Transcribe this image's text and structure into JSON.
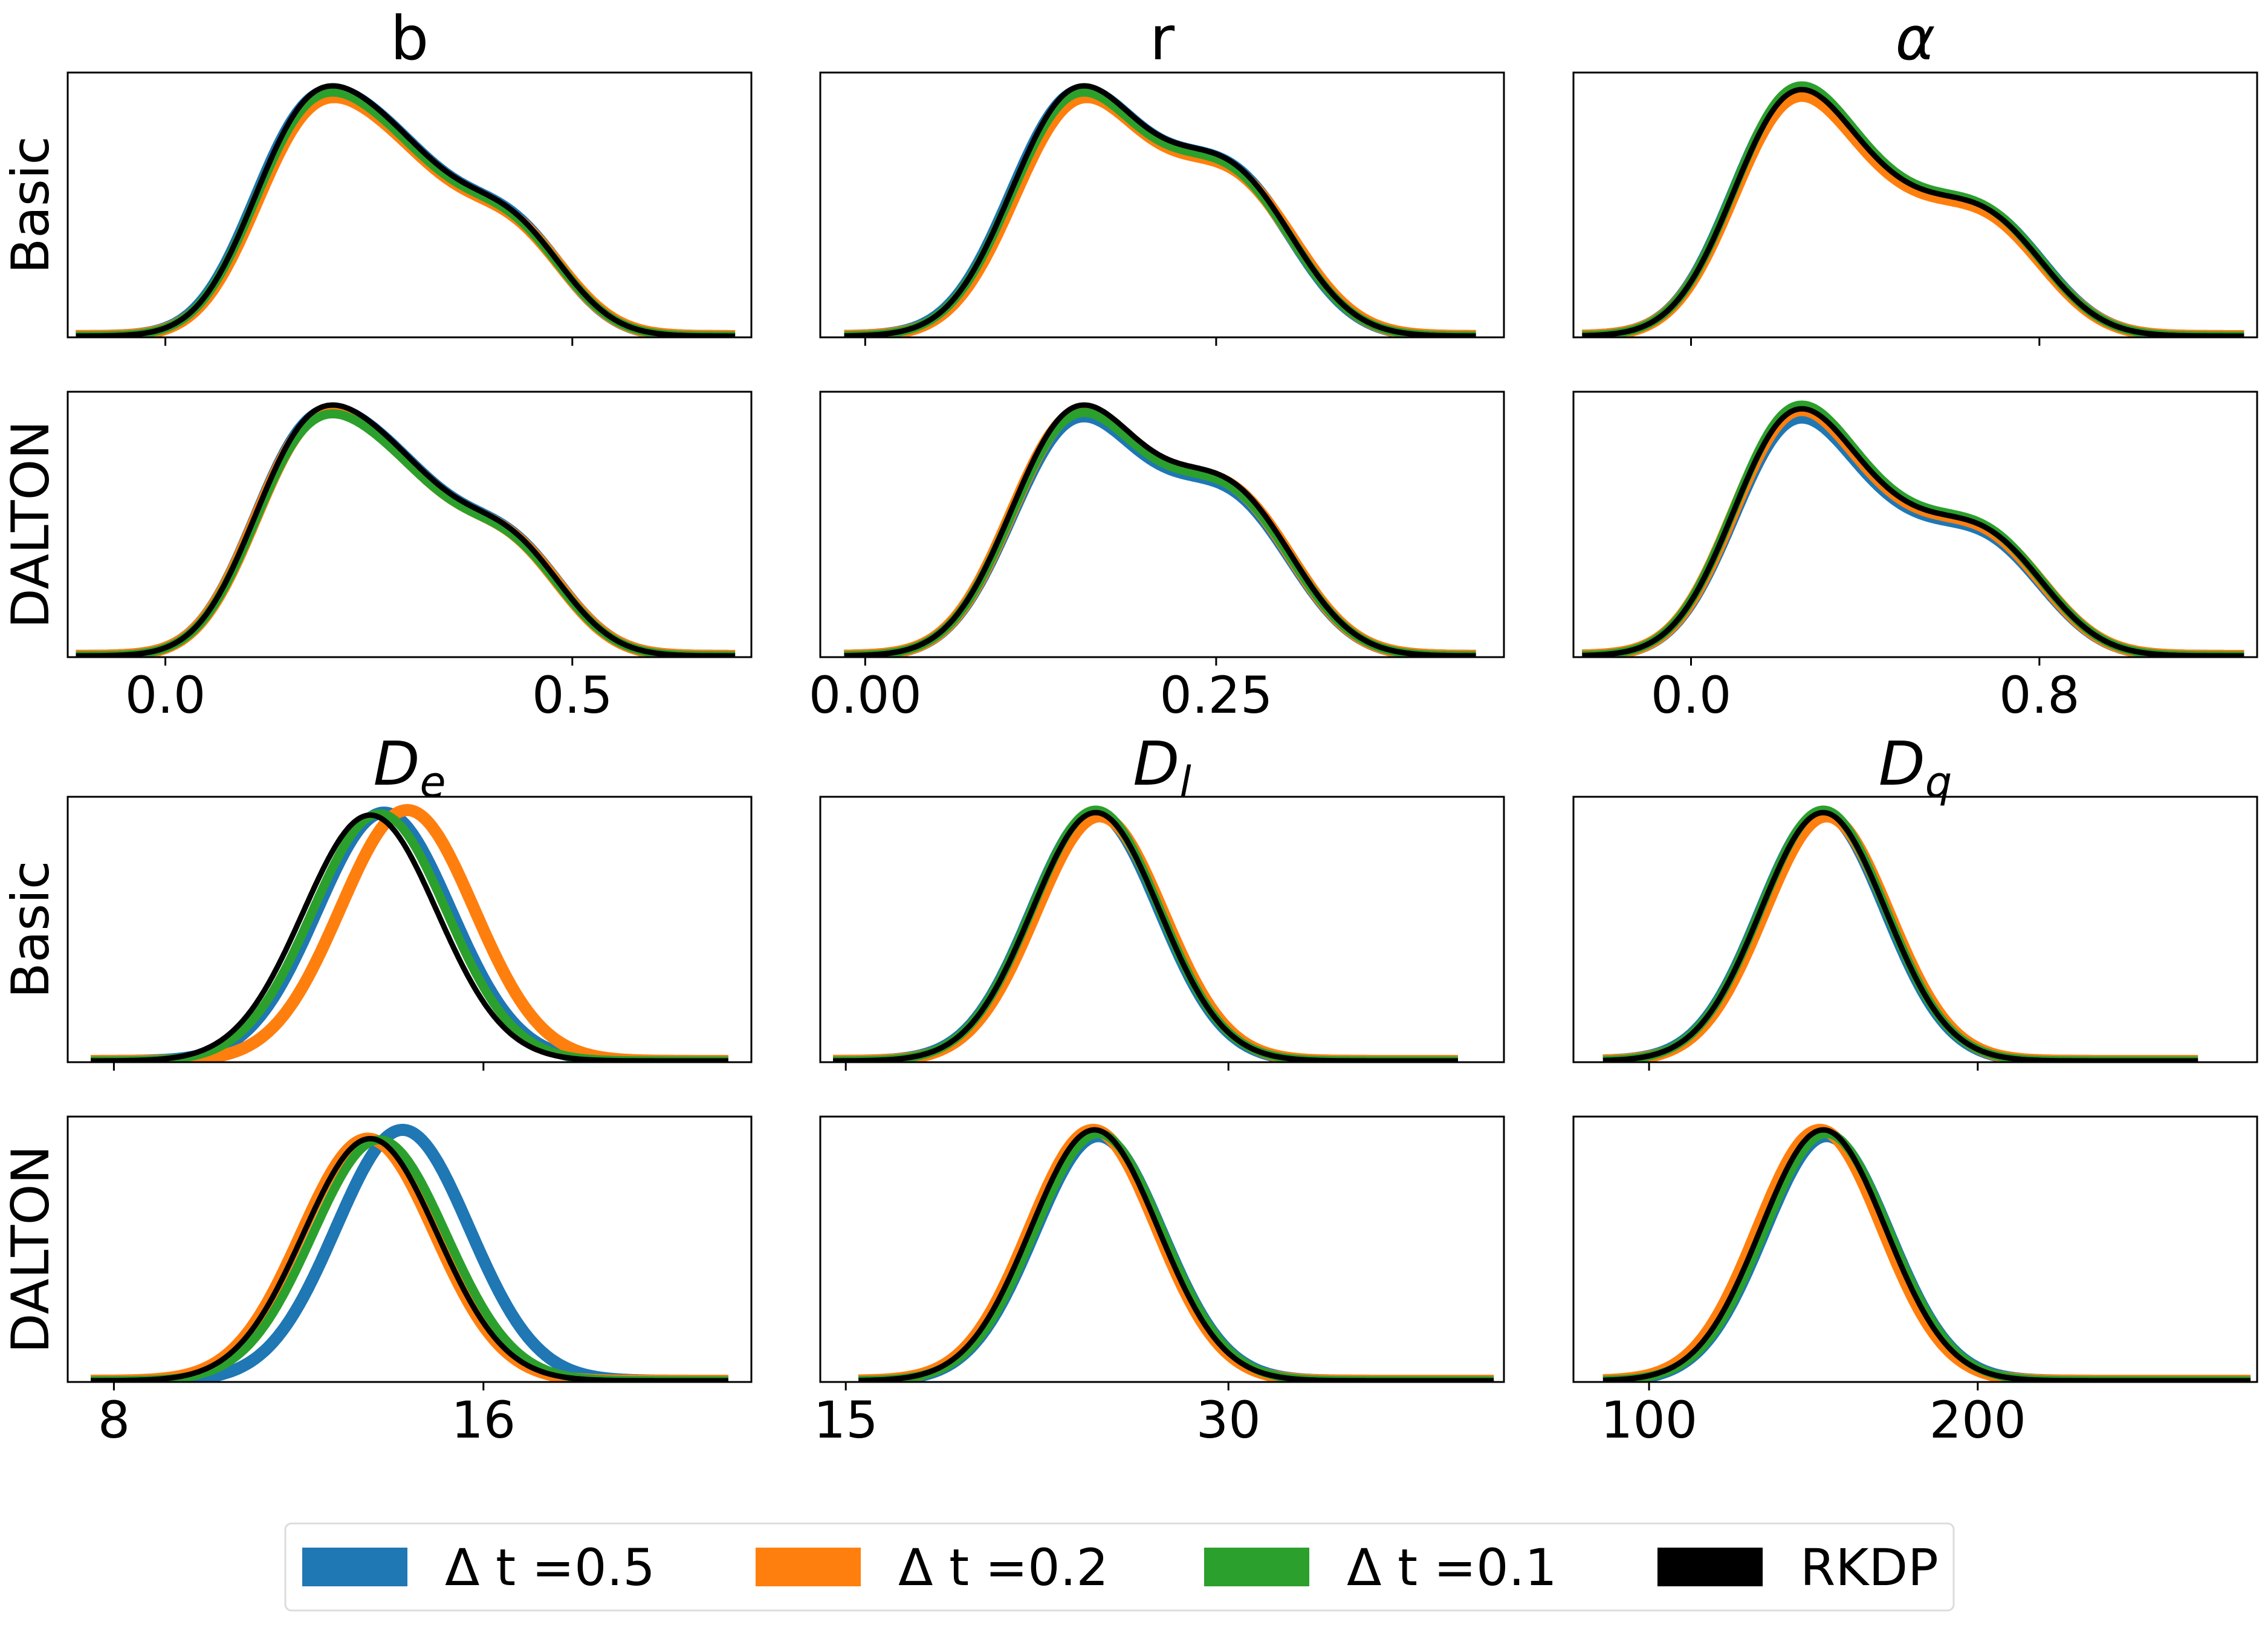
{
  "figure": {
    "column_titles": [
      "b",
      "r",
      "α"
    ],
    "row_labels": [
      "Basic",
      "DALTON"
    ]
  },
  "legend": {
    "entries": [
      {
        "label": "Δ t =0.5",
        "color": "#1f77b4"
      },
      {
        "label": "Δ t =0.2",
        "color": "#ff7f0e"
      },
      {
        "label": "Δ t =0.1",
        "color": "#2ca02c"
      },
      {
        "label": "RKDP",
        "color": "#000000"
      }
    ]
  },
  "chart_data": [
    {
      "type": "line",
      "kind": "kde",
      "title": "b",
      "row": "Basic",
      "xlim": [
        -0.12,
        0.72
      ],
      "xticks": [
        "0.0",
        "0.5"
      ],
      "xtick_values": [
        0.0,
        0.5
      ],
      "show_xticklabels": false,
      "yticks": false,
      "shape": {
        "mode": "skewed",
        "peak": 0.17,
        "ws": [
          0.065,
          0.085,
          0.065
        ],
        "cs": [
          0.16,
          0.27,
          0.43
        ],
        "as": [
          0.6,
          0.75,
          0.38
        ],
        "xmin": -0.11,
        "xmax": 0.7
      },
      "series": [
        {
          "name": "Δ t =0.5",
          "color": "#1f77b4",
          "shift": 0,
          "scale": 0.985
        },
        {
          "name": "Δ t =0.2",
          "color": "#ff7f0e",
          "shift": 0.002,
          "scale": 0.955
        },
        {
          "name": "Δ t =0.1",
          "color": "#2ca02c",
          "shift": 0,
          "scale": 0.975
        },
        {
          "name": "RKDP",
          "color": "#000000",
          "shift": 0,
          "scale": 1.0
        }
      ]
    },
    {
      "type": "line",
      "kind": "kde",
      "title": "r",
      "row": "Basic",
      "xlim": [
        -0.032,
        0.455
      ],
      "xticks": [
        "0.00",
        "0.25"
      ],
      "xtick_values": [
        0.0,
        0.25
      ],
      "show_xticklabels": false,
      "yticks": false,
      "shape": {
        "mode": "skewed",
        "peak": 0.15,
        "ws": [
          0.042,
          0.052,
          0.042
        ],
        "cs": [
          0.14,
          0.2,
          0.27
        ],
        "as": [
          0.85,
          0.55,
          0.55
        ],
        "xmin": -0.015,
        "xmax": 0.435
      },
      "series": [
        {
          "name": "Δ t =0.5",
          "color": "#1f77b4",
          "shift": 0,
          "scale": 0.985
        },
        {
          "name": "Δ t =0.2",
          "color": "#ff7f0e",
          "shift": 0.002,
          "scale": 0.955
        },
        {
          "name": "Δ t =0.1",
          "color": "#2ca02c",
          "shift": 0,
          "scale": 0.975
        },
        {
          "name": "RKDP",
          "color": "#000000",
          "shift": 0,
          "scale": 1.0
        }
      ]
    },
    {
      "type": "line",
      "kind": "kde",
      "title": "α",
      "row": "Basic",
      "xlim": [
        -0.27,
        1.3
      ],
      "xticks": [
        "0.0",
        "0.8"
      ],
      "xtick_values": [
        0.0,
        0.8
      ],
      "show_xticklabels": false,
      "yticks": false,
      "shape": {
        "mode": "skewed",
        "peak": 0.22,
        "ws": [
          0.13,
          0.17,
          0.13
        ],
        "cs": [
          0.21,
          0.42,
          0.7
        ],
        "as": [
          0.8,
          0.55,
          0.4
        ],
        "xmin": -0.25,
        "xmax": 1.27
      },
      "series": [
        {
          "name": "Δ t =0.5",
          "color": "#1f77b4",
          "shift": 0,
          "scale": 0.985
        },
        {
          "name": "Δ t =0.2",
          "color": "#ff7f0e",
          "shift": 0,
          "scale": 0.96
        },
        {
          "name": "Δ t =0.1",
          "color": "#2ca02c",
          "shift": 0,
          "scale": 1.0
        },
        {
          "name": "RKDP",
          "color": "#000000",
          "shift": 0,
          "scale": 0.985
        }
      ]
    },
    {
      "type": "line",
      "kind": "kde",
      "title": "",
      "row": "DALTON",
      "xlim": [
        -0.12,
        0.72
      ],
      "xticks": [
        "0.0",
        "0.5"
      ],
      "xtick_values": [
        0.0,
        0.5
      ],
      "show_xticklabels": true,
      "yticks": false,
      "shape": {
        "mode": "skewed",
        "peak": 0.17,
        "ws": [
          0.065,
          0.085,
          0.065
        ],
        "cs": [
          0.16,
          0.27,
          0.43
        ],
        "as": [
          0.6,
          0.75,
          0.38
        ],
        "xmin": -0.11,
        "xmax": 0.7
      },
      "series": [
        {
          "name": "Δ t =0.5",
          "color": "#1f77b4",
          "shift": 0,
          "scale": 0.985
        },
        {
          "name": "Δ t =0.2",
          "color": "#ff7f0e",
          "shift": 0,
          "scale": 0.975
        },
        {
          "name": "Δ t =0.1",
          "color": "#2ca02c",
          "shift": 0,
          "scale": 0.965
        },
        {
          "name": "RKDP",
          "color": "#000000",
          "shift": 0,
          "scale": 1.0
        }
      ]
    },
    {
      "type": "line",
      "kind": "kde",
      "title": "",
      "row": "DALTON",
      "xlim": [
        -0.032,
        0.455
      ],
      "xticks": [
        "0.00",
        "0.25"
      ],
      "xtick_values": [
        0.0,
        0.25
      ],
      "show_xticklabels": true,
      "yticks": false,
      "shape": {
        "mode": "skewed",
        "peak": 0.15,
        "ws": [
          0.042,
          0.052,
          0.042
        ],
        "cs": [
          0.14,
          0.2,
          0.27
        ],
        "as": [
          0.85,
          0.55,
          0.55
        ],
        "xmin": -0.015,
        "xmax": 0.435
      },
      "series": [
        {
          "name": "Δ t =0.5",
          "color": "#1f77b4",
          "shift": 0,
          "scale": 0.955
        },
        {
          "name": "Δ t =0.2",
          "color": "#ff7f0e",
          "shift": 0,
          "scale": 0.98
        },
        {
          "name": "Δ t =0.1",
          "color": "#2ca02c",
          "shift": 0,
          "scale": 0.97
        },
        {
          "name": "RKDP",
          "color": "#000000",
          "shift": 0,
          "scale": 1.0
        }
      ]
    },
    {
      "type": "line",
      "kind": "kde",
      "title": "",
      "row": "DALTON",
      "xlim": [
        -0.27,
        1.3
      ],
      "xticks": [
        "0.0",
        "0.8"
      ],
      "xtick_values": [
        0.0,
        0.8
      ],
      "show_xticklabels": true,
      "yticks": false,
      "shape": {
        "mode": "skewed",
        "peak": 0.22,
        "ws": [
          0.13,
          0.17,
          0.13
        ],
        "cs": [
          0.21,
          0.42,
          0.7
        ],
        "as": [
          0.8,
          0.55,
          0.4
        ],
        "xmin": -0.25,
        "xmax": 1.27
      },
      "series": [
        {
          "name": "Δ t =0.5",
          "color": "#1f77b4",
          "shift": 0,
          "scale": 0.95
        },
        {
          "name": "Δ t =0.2",
          "color": "#ff7f0e",
          "shift": 0,
          "scale": 0.98
        },
        {
          "name": "Δ t =0.1",
          "color": "#2ca02c",
          "shift": 0,
          "scale": 1.0
        },
        {
          "name": "RKDP",
          "color": "#000000",
          "shift": 0,
          "scale": 0.985
        }
      ]
    },
    {
      "type": "line",
      "kind": "kde",
      "title": "D",
      "title_sub": "e",
      "row": "Basic",
      "xlim": [
        7.0,
        21.8
      ],
      "xticks": [
        "8",
        "16"
      ],
      "xtick_values": [
        8,
        16
      ],
      "show_xticklabels": false,
      "yticks": false,
      "shape": {
        "mode": "gauss",
        "sigma": 1.45,
        "xmin": 7.5,
        "xmax": 21.3
      },
      "series": [
        {
          "name": "Δ t =0.5",
          "color": "#1f77b4",
          "peak": 13.85,
          "scale": 0.99
        },
        {
          "name": "Δ t =0.2",
          "color": "#ff7f0e",
          "peak": 14.35,
          "scale": 1.0
        },
        {
          "name": "Δ t =0.1",
          "color": "#2ca02c",
          "peak": 13.75,
          "scale": 0.985
        },
        {
          "name": "RKDP",
          "color": "#000000",
          "peak": 13.55,
          "scale": 0.98
        }
      ]
    },
    {
      "type": "line",
      "kind": "kde",
      "title": "D",
      "title_sub": "l",
      "row": "Basic",
      "xlim": [
        14.0,
        40.8
      ],
      "xticks": [
        "15",
        "30"
      ],
      "xtick_values": [
        15,
        30
      ],
      "show_xticklabels": false,
      "yticks": false,
      "shape": {
        "mode": "gauss",
        "sigma": 2.5,
        "xmin": 14.5,
        "xmax": 39.0
      },
      "series": [
        {
          "name": "Δ t =0.5",
          "color": "#1f77b4",
          "peak": 24.8,
          "scale": 0.99
        },
        {
          "name": "Δ t =0.2",
          "color": "#ff7f0e",
          "peak": 24.95,
          "scale": 0.975
        },
        {
          "name": "Δ t =0.1",
          "color": "#2ca02c",
          "peak": 24.8,
          "scale": 1.0
        },
        {
          "name": "RKDP",
          "color": "#000000",
          "peak": 24.8,
          "scale": 0.99
        }
      ]
    },
    {
      "type": "line",
      "kind": "kde",
      "title": "D",
      "title_sub": "q",
      "row": "Basic",
      "xlim": [
        77,
        285
      ],
      "xticks": [
        "100",
        "200"
      ],
      "xtick_values": [
        100,
        200
      ],
      "show_xticklabels": false,
      "yticks": false,
      "shape": {
        "mode": "gauss",
        "sigma": 19,
        "xmin": 86,
        "xmax": 267
      },
      "series": [
        {
          "name": "Δ t =0.5",
          "color": "#1f77b4",
          "peak": 153,
          "scale": 0.99
        },
        {
          "name": "Δ t =0.2",
          "color": "#ff7f0e",
          "peak": 154,
          "scale": 0.975
        },
        {
          "name": "Δ t =0.1",
          "color": "#2ca02c",
          "peak": 153,
          "scale": 1.0
        },
        {
          "name": "RKDP",
          "color": "#000000",
          "peak": 153,
          "scale": 0.99
        }
      ]
    },
    {
      "type": "line",
      "kind": "kde",
      "title": "",
      "row": "DALTON",
      "xlim": [
        7.0,
        21.8
      ],
      "xticks": [
        "8",
        "16"
      ],
      "xtick_values": [
        8,
        16
      ],
      "show_xticklabels": true,
      "yticks": false,
      "shape": {
        "mode": "gauss",
        "sigma": 1.45,
        "xmin": 7.5,
        "xmax": 21.3
      },
      "series": [
        {
          "name": "Δ t =0.5",
          "color": "#1f77b4",
          "peak": 14.25,
          "scale": 1.0
        },
        {
          "name": "Δ t =0.2",
          "color": "#ff7f0e",
          "peak": 13.5,
          "scale": 0.965
        },
        {
          "name": "Δ t =0.1",
          "color": "#2ca02c",
          "peak": 13.75,
          "scale": 0.96
        },
        {
          "name": "RKDP",
          "color": "#000000",
          "peak": 13.55,
          "scale": 0.965
        }
      ]
    },
    {
      "type": "line",
      "kind": "kde",
      "title": "",
      "row": "DALTON",
      "xlim": [
        14.0,
        40.8
      ],
      "xticks": [
        "15",
        "30"
      ],
      "xtick_values": [
        15,
        30
      ],
      "show_xticklabels": true,
      "yticks": false,
      "shape": {
        "mode": "gauss",
        "sigma": 2.5,
        "xmin": 15.5,
        "xmax": 40.4
      },
      "series": [
        {
          "name": "Δ t =0.5",
          "color": "#1f77b4",
          "peak": 24.9,
          "scale": 0.975
        },
        {
          "name": "Δ t =0.2",
          "color": "#ff7f0e",
          "peak": 24.7,
          "scale": 1.0
        },
        {
          "name": "Δ t =0.1",
          "color": "#2ca02c",
          "peak": 24.9,
          "scale": 0.985
        },
        {
          "name": "RKDP",
          "color": "#000000",
          "peak": 24.75,
          "scale": 1.0
        }
      ]
    },
    {
      "type": "line",
      "kind": "kde",
      "title": "",
      "row": "DALTON",
      "xlim": [
        77,
        285
      ],
      "xticks": [
        "100",
        "200"
      ],
      "xtick_values": [
        100,
        200
      ],
      "show_xticklabels": true,
      "yticks": false,
      "shape": {
        "mode": "gauss",
        "sigma": 19,
        "xmin": 86,
        "xmax": 283
      },
      "series": [
        {
          "name": "Δ t =0.5",
          "color": "#1f77b4",
          "peak": 154,
          "scale": 0.975
        },
        {
          "name": "Δ t =0.2",
          "color": "#ff7f0e",
          "peak": 152,
          "scale": 1.0
        },
        {
          "name": "Δ t =0.1",
          "color": "#2ca02c",
          "peak": 154,
          "scale": 0.985
        },
        {
          "name": "RKDP",
          "color": "#000000",
          "peak": 153,
          "scale": 1.0
        }
      ]
    }
  ]
}
